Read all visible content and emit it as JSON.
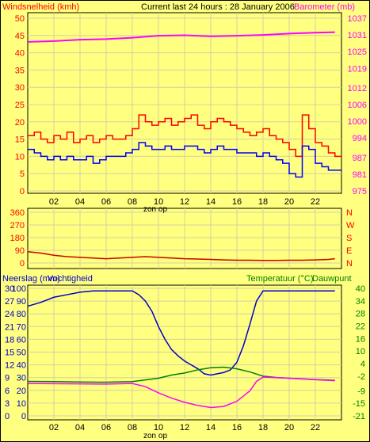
{
  "header": {
    "wind_label": "Windsnelheid (kmh)",
    "title": "Current last 24 hours : 28 January 2006",
    "baro_label": "Barometer (mb)"
  },
  "colors": {
    "background": "#FFFF80",
    "grid": "#D6D0A0",
    "wind_red": "#FF0000",
    "wind_blue": "#0000FF",
    "baro": "#FF00FF",
    "direction": "#CC0000",
    "humidity": "#0000CC",
    "temperature": "#008000",
    "dewpoint": "#FF00FF",
    "axis_red": "#FF0000",
    "axis_green": "#008000",
    "axis_blue": "#0000CC"
  },
  "x_axis": {
    "ticks": [
      "02",
      "04",
      "06",
      "08",
      "10",
      "12",
      "14",
      "16",
      "18",
      "20",
      "22"
    ],
    "sun_label_top": "zon op",
    "sun_label_bottom": "zon op"
  },
  "chart_data": [
    {
      "type": "line",
      "title": "Current last 24 hours : 28 January 2006",
      "x_range_hours": [
        0,
        24
      ],
      "y_left": {
        "label": "Windsnelheid (kmh)",
        "ticks": [
          0,
          5,
          10,
          15,
          20,
          25,
          30,
          35,
          40,
          45,
          50
        ],
        "range": [
          0,
          50
        ]
      },
      "y_right": {
        "label": "Barometer (mb)",
        "ticks": [
          975,
          981,
          987,
          994,
          1000,
          1006,
          1012,
          1019,
          1025,
          1031,
          1037
        ],
        "range": [
          975,
          1037
        ]
      },
      "grid": true,
      "series": [
        {
          "name": "gust",
          "axis": "left",
          "x": [
            0,
            0.5,
            1,
            1.5,
            2,
            2.5,
            3,
            3.5,
            4,
            4.5,
            5,
            5.5,
            6,
            6.5,
            7,
            7.5,
            8,
            8.5,
            9,
            9.5,
            10,
            10.5,
            11,
            11.5,
            12,
            12.5,
            13,
            13.5,
            14,
            14.5,
            15,
            15.5,
            16,
            16.5,
            17,
            17.5,
            18,
            18.5,
            19,
            19.5,
            20,
            20.5,
            21,
            21.5,
            22,
            22.5,
            23,
            23.5
          ],
          "values": [
            16,
            17,
            15,
            14,
            16,
            15,
            17,
            14,
            15,
            16,
            14,
            15,
            16,
            15,
            15,
            16,
            18,
            22,
            20,
            19,
            20,
            21,
            19,
            20,
            21,
            22,
            19,
            18,
            20,
            21,
            20,
            19,
            18,
            17,
            16,
            17,
            18,
            16,
            15,
            14,
            12,
            10,
            22,
            18,
            14,
            13,
            11,
            10
          ]
        },
        {
          "name": "mean",
          "axis": "left",
          "x": [
            0,
            0.5,
            1,
            1.5,
            2,
            2.5,
            3,
            3.5,
            4,
            4.5,
            5,
            5.5,
            6,
            6.5,
            7,
            7.5,
            8,
            8.5,
            9,
            9.5,
            10,
            10.5,
            11,
            11.5,
            12,
            12.5,
            13,
            13.5,
            14,
            14.5,
            15,
            15.5,
            16,
            16.5,
            17,
            17.5,
            18,
            18.5,
            19,
            19.5,
            20,
            20.5,
            21,
            21.5,
            22,
            22.5,
            23,
            23.5
          ],
          "values": [
            12,
            11,
            10,
            9,
            10,
            9,
            10,
            9,
            9,
            10,
            8,
            9,
            10,
            10,
            10,
            11,
            12,
            14,
            13,
            12,
            12,
            13,
            12,
            12,
            13,
            13,
            12,
            11,
            12,
            13,
            12,
            12,
            11,
            11,
            11,
            10,
            11,
            10,
            9,
            8,
            5,
            4,
            13,
            12,
            8,
            7,
            6,
            6
          ]
        },
        {
          "name": "barometer",
          "axis": "right",
          "x": [
            0,
            2,
            4,
            6,
            8,
            10,
            12,
            14,
            16,
            18,
            20,
            22,
            23.5
          ],
          "values": [
            1028.5,
            1028.8,
            1029.3,
            1029.5,
            1030.0,
            1030.7,
            1030.9,
            1030.5,
            1030.7,
            1031.0,
            1031.5,
            1031.8,
            1032.0
          ]
        }
      ]
    },
    {
      "type": "line",
      "y_left": {
        "ticks": [
          0,
          90,
          180,
          270,
          360
        ],
        "range": [
          0,
          360
        ]
      },
      "y_right": {
        "ticks": [
          "N",
          "E",
          "S",
          "W",
          "N"
        ]
      },
      "grid": true,
      "series": [
        {
          "name": "direction",
          "x": [
            0,
            1,
            2,
            3,
            4,
            5,
            6,
            7,
            8,
            9,
            10,
            11,
            12,
            13,
            14,
            15,
            16,
            17,
            18,
            19,
            20,
            21,
            22,
            23,
            23.5
          ],
          "values": [
            80,
            70,
            55,
            45,
            40,
            35,
            30,
            35,
            40,
            45,
            40,
            35,
            30,
            28,
            25,
            22,
            20,
            20,
            18,
            18,
            20,
            20,
            22,
            25,
            30
          ]
        }
      ]
    },
    {
      "type": "line",
      "y_left": {
        "label_rain": "Neerslag (mm)",
        "label_humidity": "Vochtigheid",
        "rain_ticks": [
          0,
          3,
          6,
          9,
          12,
          15,
          18,
          21,
          24,
          27,
          30
        ],
        "humidity_ticks": [
          0,
          10,
          20,
          30,
          40,
          50,
          60,
          70,
          80,
          90,
          100
        ],
        "range": [
          0,
          100
        ]
      },
      "y_right": {
        "label_temp": "Temperatuur (°C)",
        "label_dew": "Dauwpunt",
        "ticks": [
          -21,
          -15,
          -9,
          -2,
          4,
          10,
          16,
          22,
          28,
          34,
          40
        ],
        "range": [
          -21,
          40
        ]
      },
      "grid": true,
      "series": [
        {
          "name": "humidity",
          "axis": "left",
          "x": [
            0,
            1,
            2,
            3,
            4,
            5,
            6,
            7,
            8,
            8.5,
            9,
            9.5,
            10,
            10.5,
            11,
            11.5,
            12,
            12.5,
            13,
            13.5,
            14,
            14.5,
            15,
            15.5,
            16,
            16.5,
            17,
            17.5,
            18,
            19,
            20,
            21,
            22,
            23,
            23.5
          ],
          "values": [
            86,
            89,
            93,
            95,
            97,
            98,
            98,
            98,
            98,
            95,
            90,
            82,
            70,
            60,
            52,
            47,
            43,
            40,
            37,
            33,
            32,
            33,
            34,
            36,
            42,
            55,
            72,
            90,
            98,
            98,
            98,
            98,
            98,
            98,
            98
          ]
        },
        {
          "name": "temperature",
          "axis": "right",
          "x": [
            0,
            2,
            4,
            6,
            8,
            10,
            11,
            12,
            13,
            14,
            15,
            16,
            17,
            18,
            19,
            20,
            22,
            23.5
          ],
          "values": [
            -4.5,
            -4.6,
            -4.8,
            -4.9,
            -4.6,
            -3.0,
            -1.5,
            -0.5,
            1.0,
            2.0,
            2.3,
            1.5,
            0.0,
            -2.0,
            -2.6,
            -3.0,
            -3.6,
            -4.0
          ]
        },
        {
          "name": "dewpoint",
          "axis": "right",
          "x": [
            0,
            2,
            4,
            6,
            8,
            9,
            10,
            11,
            12,
            13,
            14,
            15,
            16,
            17,
            17.5,
            18,
            19,
            20,
            22,
            23.5
          ],
          "values": [
            -5.5,
            -5.6,
            -5.7,
            -5.8,
            -5.5,
            -7.0,
            -10.0,
            -12.5,
            -14.5,
            -16.0,
            -17.0,
            -16.5,
            -14.0,
            -9.0,
            -4.5,
            -2.5,
            -2.7,
            -3.0,
            -3.7,
            -4.2
          ]
        }
      ]
    }
  ],
  "panel2": {
    "right_labels": [
      "N",
      "W",
      "S",
      "E",
      "N"
    ]
  },
  "panel3": {
    "label_rain": "Neerslag (mm)",
    "label_humidity": "Vochtigheid",
    "label_temp": "Temperatuur (°C)",
    "label_dew": "Dauwpunt"
  }
}
